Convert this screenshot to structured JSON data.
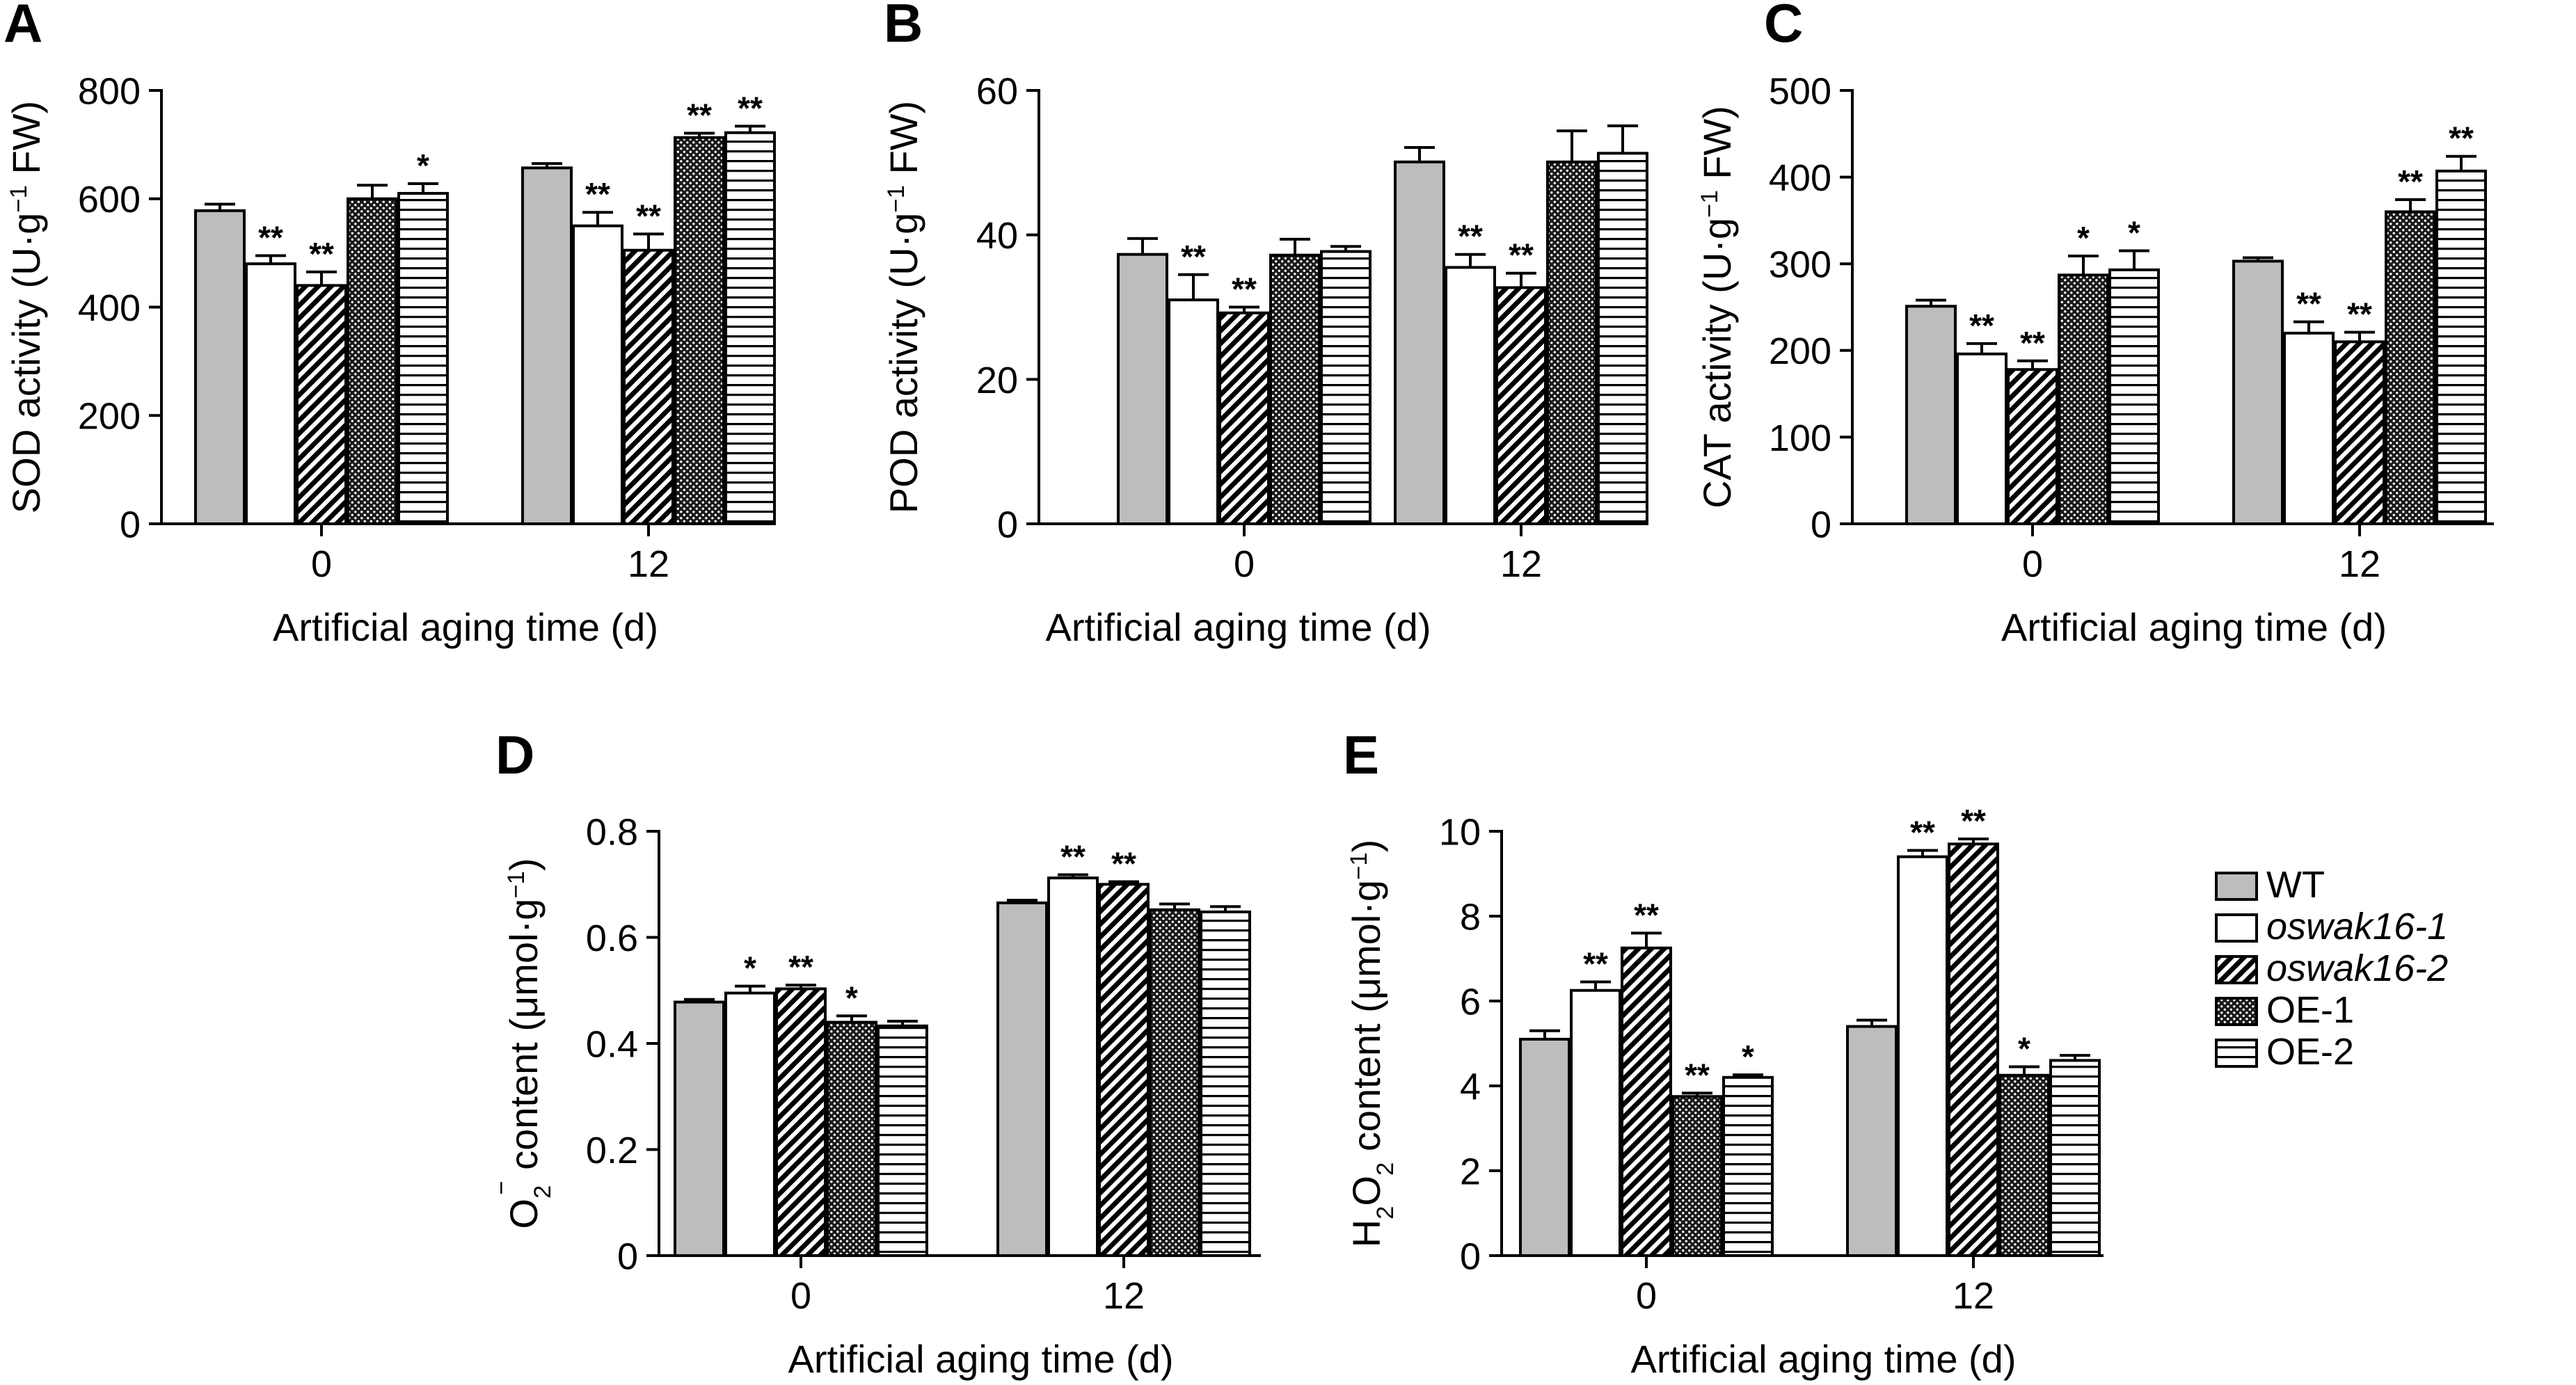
{
  "figure": {
    "legend": {
      "entries": [
        {
          "series": "WT",
          "label": "WT",
          "italic": false
        },
        {
          "series": "oswak16-1",
          "label": "oswak16-1",
          "italic": true
        },
        {
          "series": "oswak16-2",
          "label": "oswak16-2",
          "italic": true
        },
        {
          "series": "OE-1",
          "label": "OE-1",
          "italic": false
        },
        {
          "series": "OE-2",
          "label": "OE-2",
          "italic": false
        }
      ]
    }
  },
  "chart_data": [
    {
      "panel": "A",
      "type": "bar",
      "ylabel_prefix": "SOD activity (U·g",
      "ylabel_sup": "−1",
      "ylabel_suffix": " FW)",
      "xlabel": "Artificial aging time (d)",
      "categories": [
        "0",
        "12"
      ],
      "ylim": [
        0,
        800
      ],
      "yticks": [
        0,
        200,
        400,
        600,
        800
      ],
      "series": [
        {
          "name": "WT",
          "values": [
            578,
            657
          ],
          "errors": [
            12,
            8
          ],
          "sig": [
            "",
            ""
          ]
        },
        {
          "name": "oswak16-1",
          "values": [
            480,
            550
          ],
          "errors": [
            15,
            25
          ],
          "sig": [
            "**",
            "**"
          ]
        },
        {
          "name": "oswak16-2",
          "values": [
            440,
            505
          ],
          "errors": [
            25,
            30
          ],
          "sig": [
            "**",
            "**"
          ]
        },
        {
          "name": "OE-1",
          "values": [
            600,
            713
          ],
          "errors": [
            25,
            8
          ],
          "sig": [
            "",
            "**"
          ]
        },
        {
          "name": "OE-2",
          "values": [
            610,
            722
          ],
          "errors": [
            18,
            12
          ],
          "sig": [
            "*",
            "**"
          ]
        }
      ]
    },
    {
      "panel": "B",
      "type": "bar",
      "ylabel_prefix": "POD activity (U·g",
      "ylabel_sup": "−1",
      "ylabel_suffix": " FW)",
      "xlabel": "Artificial aging time (d)",
      "categories": [
        "0",
        "12"
      ],
      "ylim": [
        0,
        60
      ],
      "yticks": [
        0,
        20,
        40,
        60
      ],
      "series": [
        {
          "name": "WT",
          "values": [
            37.3,
            50.1
          ],
          "errors": [
            2.2,
            2.0
          ],
          "sig": [
            "",
            ""
          ]
        },
        {
          "name": "oswak16-1",
          "values": [
            31.0,
            35.5
          ],
          "errors": [
            3.5,
            1.8
          ],
          "sig": [
            "**",
            "**"
          ]
        },
        {
          "name": "oswak16-2",
          "values": [
            29.2,
            32.7
          ],
          "errors": [
            0.8,
            2.0
          ],
          "sig": [
            "**",
            "**"
          ]
        },
        {
          "name": "OE-1",
          "values": [
            37.2,
            50.1
          ],
          "errors": [
            2.2,
            4.3
          ],
          "sig": [
            "",
            ""
          ]
        },
        {
          "name": "OE-2",
          "values": [
            37.7,
            51.3
          ],
          "errors": [
            0.7,
            3.8
          ],
          "sig": [
            "",
            ""
          ]
        }
      ]
    },
    {
      "panel": "C",
      "type": "bar",
      "ylabel_prefix": "CAT activity (U·g",
      "ylabel_sup": "−1",
      "ylabel_suffix": " FW)",
      "xlabel": "Artificial aging time (d)",
      "categories": [
        "0",
        "12"
      ],
      "ylim": [
        0,
        500
      ],
      "yticks": [
        0,
        100,
        200,
        300,
        400,
        500
      ],
      "series": [
        {
          "name": "WT",
          "values": [
            251,
            303
          ],
          "errors": [
            7,
            4
          ],
          "sig": [
            "",
            ""
          ]
        },
        {
          "name": "oswak16-1",
          "values": [
            196,
            220
          ],
          "errors": [
            12,
            13
          ],
          "sig": [
            "**",
            "**"
          ]
        },
        {
          "name": "oswak16-2",
          "values": [
            178,
            210
          ],
          "errors": [
            10,
            11
          ],
          "sig": [
            "**",
            "**"
          ]
        },
        {
          "name": "OE-1",
          "values": [
            287,
            360
          ],
          "errors": [
            22,
            14
          ],
          "sig": [
            "*",
            "**"
          ]
        },
        {
          "name": "OE-2",
          "values": [
            293,
            407
          ],
          "errors": [
            22,
            17
          ],
          "sig": [
            "*",
            "**"
          ]
        }
      ]
    },
    {
      "panel": "D",
      "type": "bar",
      "ylabel_prefix": "O",
      "ylabel_sub": "2",
      "ylabel_sup": "−",
      "ylabel_suffix": " content (μmol·g",
      "ylabel_sup2": "−1",
      "ylabel_end": ")",
      "xlabel": "Artificial aging time (d)",
      "categories": [
        "0",
        "12"
      ],
      "ylim": [
        0,
        0.8
      ],
      "yticks": [
        0,
        0.2,
        0.4,
        0.6,
        0.8
      ],
      "series": [
        {
          "name": "WT",
          "values": [
            0.478,
            0.665
          ],
          "errors": [
            0.005,
            0.005
          ],
          "sig": [
            "",
            ""
          ]
        },
        {
          "name": "oswak16-1",
          "values": [
            0.495,
            0.712
          ],
          "errors": [
            0.013,
            0.006
          ],
          "sig": [
            "*",
            "**"
          ]
        },
        {
          "name": "oswak16-2",
          "values": [
            0.503,
            0.7
          ],
          "errors": [
            0.007,
            0.005
          ],
          "sig": [
            "**",
            "**"
          ]
        },
        {
          "name": "OE-1",
          "values": [
            0.44,
            0.652
          ],
          "errors": [
            0.012,
            0.011
          ],
          "sig": [
            "*",
            ""
          ]
        },
        {
          "name": "OE-2",
          "values": [
            0.433,
            0.648
          ],
          "errors": [
            0.009,
            0.01
          ],
          "sig": [
            "",
            ""
          ]
        }
      ]
    },
    {
      "panel": "E",
      "type": "bar",
      "ylabel_prefix": "H",
      "ylabel_sub": "2",
      "ylabel_mid": "O",
      "ylabel_sub2": "2",
      "ylabel_suffix": " content (μmol·g",
      "ylabel_sup2": "−1",
      "ylabel_end": ")",
      "xlabel": "Artificial aging time (d)",
      "categories": [
        "0",
        "12"
      ],
      "ylim": [
        0,
        10
      ],
      "yticks": [
        0,
        2,
        4,
        6,
        8,
        10
      ],
      "series": [
        {
          "name": "WT",
          "values": [
            5.1,
            5.4
          ],
          "errors": [
            0.2,
            0.15
          ],
          "sig": [
            "",
            ""
          ]
        },
        {
          "name": "oswak16-1",
          "values": [
            6.25,
            9.4
          ],
          "errors": [
            0.2,
            0.15
          ],
          "sig": [
            "**",
            "**"
          ]
        },
        {
          "name": "oswak16-2",
          "values": [
            7.25,
            9.7
          ],
          "errors": [
            0.35,
            0.12
          ],
          "sig": [
            "**",
            "**"
          ]
        },
        {
          "name": "OE-1",
          "values": [
            3.75,
            4.25
          ],
          "errors": [
            0.08,
            0.2
          ],
          "sig": [
            "**",
            "*"
          ]
        },
        {
          "name": "OE-2",
          "values": [
            4.2,
            4.6
          ],
          "errors": [
            0.06,
            0.12
          ],
          "sig": [
            "*",
            ""
          ]
        }
      ]
    }
  ]
}
